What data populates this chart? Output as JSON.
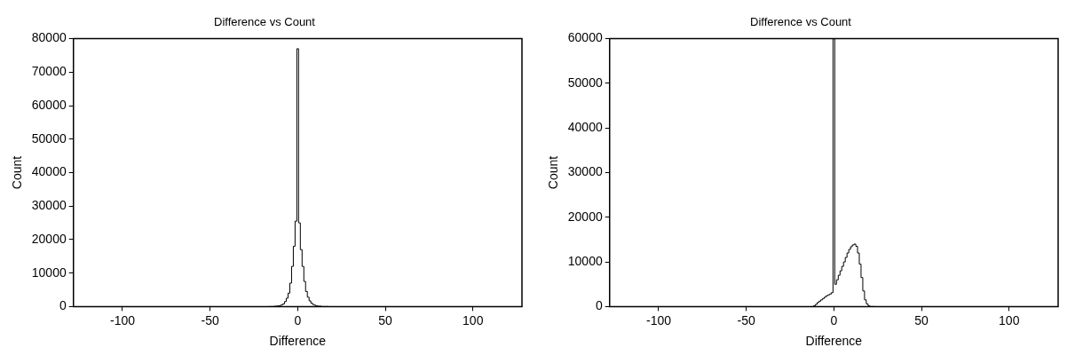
{
  "chart_data": [
    {
      "type": "histogram",
      "title": "Difference vs Count",
      "xlabel": "Difference",
      "ylabel": "Count",
      "color": "#000000",
      "bins": [
        -16.5,
        -15.5,
        -14.5,
        -13.5,
        -12.5,
        -11.5,
        -10.5,
        -9.5,
        -8.5,
        -7.5,
        -6.5,
        -5.5,
        -4.5,
        -3.5,
        -2.5,
        -1.5,
        -0.5,
        0.5,
        1.5,
        2.5,
        3.5,
        4.5,
        5.5,
        6.5,
        7.5,
        8.5,
        9.5,
        10.5,
        11.5,
        12.5,
        13.5,
        14.5,
        15.5,
        16.5,
        17.5
      ],
      "values": [
        0,
        0,
        0,
        100,
        100,
        200,
        300,
        500,
        800,
        1500,
        2500,
        4000,
        7000,
        12000,
        18000,
        25500,
        77000,
        25000,
        17000,
        12000,
        7500,
        4500,
        2800,
        1700,
        1000,
        600,
        400,
        200,
        100,
        100,
        0,
        0,
        0,
        0
      ],
      "xlim": [
        -128,
        128
      ],
      "xticks": [
        -100,
        -50,
        0,
        50,
        100
      ],
      "ylim": [
        0,
        80000
      ],
      "yticks": [
        0,
        10000,
        20000,
        30000,
        40000,
        50000,
        60000,
        70000,
        80000
      ],
      "grid": false
    },
    {
      "type": "histogram",
      "title": "Difference vs Count",
      "xlabel": "Difference",
      "ylabel": "Count",
      "color": "#000000",
      "bins": [
        -12.5,
        -11.5,
        -10.5,
        -9.5,
        -8.5,
        -7.5,
        -6.5,
        -5.5,
        -4.5,
        -3.5,
        -2.5,
        -1.5,
        -0.5,
        0.5,
        1.5,
        2.5,
        3.5,
        4.5,
        5.5,
        6.5,
        7.5,
        8.5,
        9.5,
        10.5,
        11.5,
        12.5,
        13.5,
        14.5,
        15.5,
        16.5,
        17.5,
        18.5,
        19.5,
        20.5,
        21.5,
        22.5,
        23.5
      ],
      "values": [
        0,
        200,
        500,
        900,
        1200,
        1500,
        1800,
        2100,
        2400,
        2600,
        2800,
        3100,
        60000,
        5000,
        6000,
        7000,
        8000,
        9000,
        10000,
        11000,
        12000,
        12800,
        13400,
        13800,
        14000,
        13500,
        12000,
        9500,
        6500,
        3500,
        1500,
        600,
        200,
        0,
        0,
        0
      ],
      "xlim": [
        -128,
        128
      ],
      "xticks": [
        -100,
        -50,
        0,
        50,
        100
      ],
      "ylim": [
        0,
        60000
      ],
      "yticks": [
        0,
        10000,
        20000,
        30000,
        40000,
        50000,
        60000
      ],
      "grid": false
    }
  ]
}
